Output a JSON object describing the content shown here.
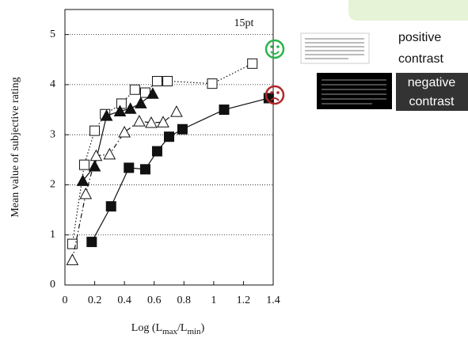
{
  "chart_data": {
    "type": "line",
    "annotation": "15pt",
    "y_label": "Mean value of subjective rating",
    "x_label_parts": [
      "Log (L",
      "max",
      "/L",
      "min",
      ")"
    ],
    "xlim": [
      0,
      1.4
    ],
    "xticks": [
      0,
      0.2,
      0.4,
      0.6,
      0.8,
      1,
      1.2,
      1.4
    ],
    "ylim": [
      0,
      5.5
    ],
    "yticks": [
      0,
      1,
      2,
      3,
      4,
      5
    ],
    "grid": true,
    "series": [
      {
        "marker": "square-open",
        "dash": "dotted",
        "color": "#111",
        "x": [
          0.05,
          0.13,
          0.2,
          0.27,
          0.38,
          0.47,
          0.54,
          0.62,
          0.69,
          0.99,
          1.26
        ],
        "values": [
          0.82,
          2.4,
          3.08,
          3.41,
          3.62,
          3.9,
          3.84,
          4.07,
          4.07,
          4.02,
          4.42
        ]
      },
      {
        "marker": "triangle-filled",
        "dash": "solid",
        "color": "#111",
        "x": [
          0.12,
          0.2,
          0.28,
          0.37,
          0.44,
          0.51,
          0.59
        ],
        "values": [
          2.08,
          2.37,
          3.38,
          3.47,
          3.52,
          3.63,
          3.82
        ]
      },
      {
        "marker": "triangle-open",
        "dash": "dashdot",
        "color": "#111",
        "x": [
          0.05,
          0.14,
          0.21,
          0.3,
          0.4,
          0.5,
          0.58,
          0.66,
          0.75
        ],
        "values": [
          0.5,
          1.82,
          2.58,
          2.61,
          3.05,
          3.27,
          3.24,
          3.25,
          3.46
        ]
      },
      {
        "marker": "square-filled",
        "dash": "solid",
        "color": "#111",
        "x": [
          0.18,
          0.31,
          0.43,
          0.54,
          0.62,
          0.7,
          0.79,
          1.07,
          1.37
        ],
        "values": [
          0.86,
          1.57,
          2.34,
          2.31,
          2.67,
          2.96,
          3.11,
          3.5,
          3.73
        ]
      }
    ],
    "legend_notes": [
      {
        "lines": [
          "positive",
          "contrast"
        ],
        "color": "#2db34a"
      },
      {
        "lines": [
          "negative",
          "contrast"
        ],
        "color": "#b0282a"
      }
    ]
  }
}
